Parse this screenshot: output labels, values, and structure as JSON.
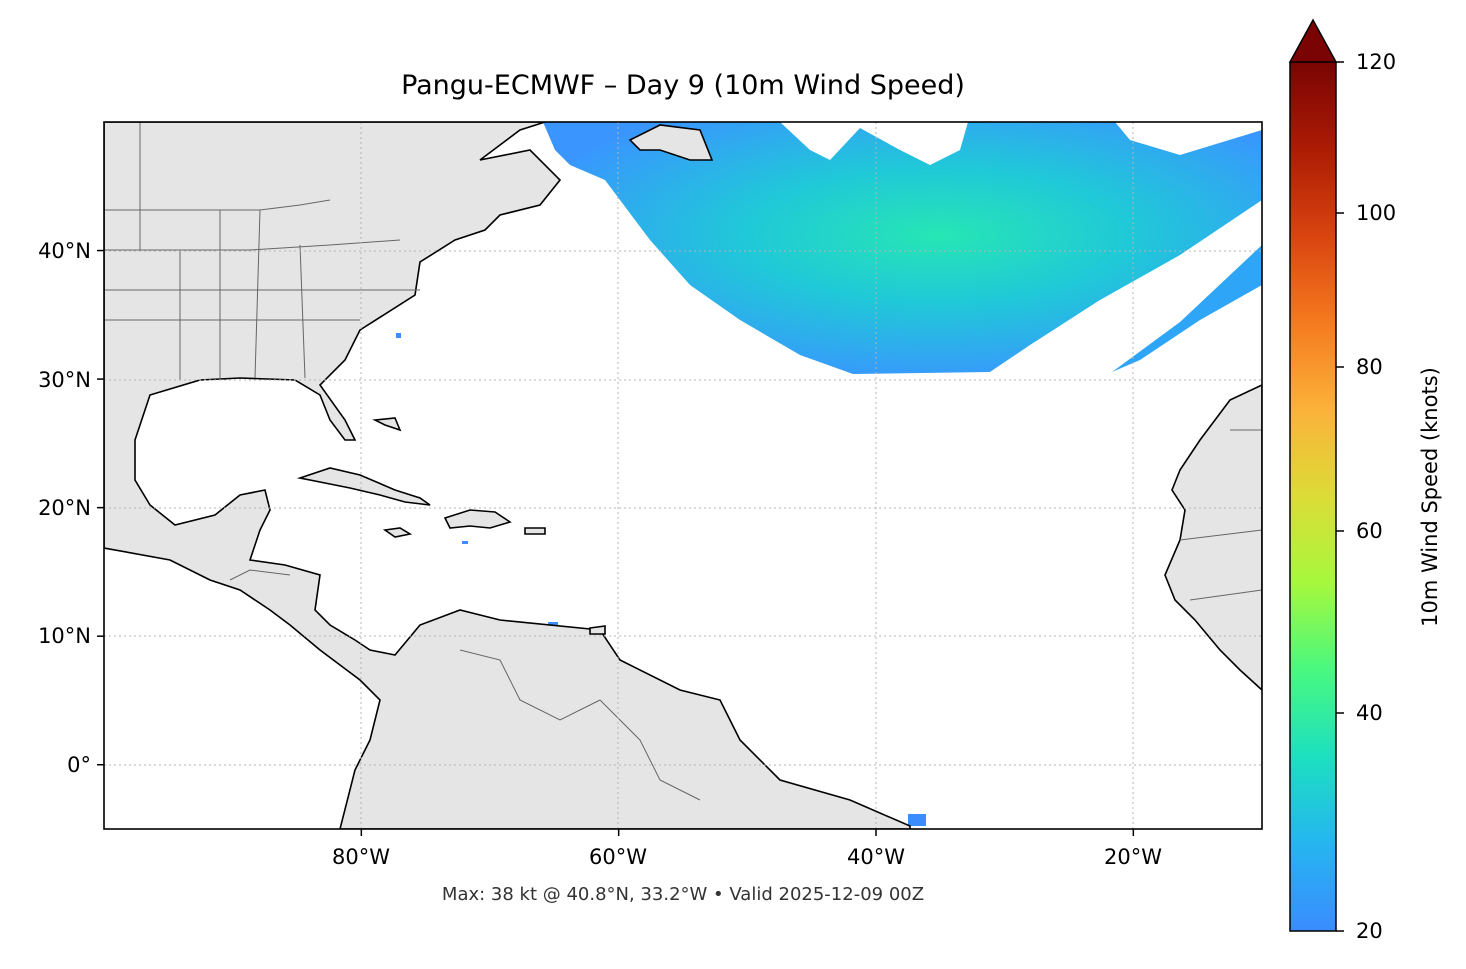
{
  "title": "Pangu-ECMWF – Day 9 (10m Wind Speed)",
  "footer": "Max: 38 kt @ 40.8°N, 33.2°W • Valid 2025-12-09 00Z",
  "map": {
    "lon_range": [
      -100,
      -10
    ],
    "lat_range": [
      -5,
      50
    ],
    "land_color": "#e5e5e5",
    "coast_color": "#000000",
    "border_color": "#666666",
    "gridlines": "dotted",
    "lat_ticks": [
      {
        "value": 40,
        "label": "40°N"
      },
      {
        "value": 30,
        "label": "30°N"
      },
      {
        "value": 20,
        "label": "20°N"
      },
      {
        "value": 10,
        "label": "10°N"
      },
      {
        "value": 0,
        "label": "0°"
      }
    ],
    "lon_ticks": [
      {
        "value": -80,
        "label": "80°W"
      },
      {
        "value": -60,
        "label": "60°W"
      },
      {
        "value": -40,
        "label": "40°W"
      },
      {
        "value": -20,
        "label": "20°W"
      }
    ],
    "wind_field": {
      "description_hidden": "",
      "max_value_kt": 38,
      "max_location": {
        "lat": 40.8,
        "lon": -33.2
      },
      "threshold_kt": 20
    }
  },
  "colorbar": {
    "label": "10m Wind Speed (knots)",
    "min": 20,
    "max": 120,
    "extend": "max",
    "colormap": "turbo",
    "ticks": [
      {
        "value": 120,
        "label": "120"
      },
      {
        "value": 100,
        "label": "100"
      },
      {
        "value": 80,
        "label": "80"
      },
      {
        "value": 60,
        "label": "60"
      },
      {
        "value": 40,
        "label": "40"
      },
      {
        "value": 20,
        "label": "20"
      }
    ]
  }
}
